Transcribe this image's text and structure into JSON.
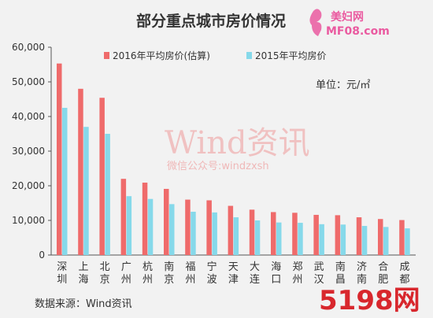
{
  "chart_data": {
    "type": "bar",
    "title": "部分重点城市房价情况",
    "unit_note": "单位：元/㎡",
    "ylim": [
      0,
      60000
    ],
    "yticks": [
      "0",
      "10,000",
      "20,000",
      "30,000",
      "40,000",
      "50,000",
      "60,000"
    ],
    "categories": [
      "深圳",
      "上海",
      "北京",
      "广州",
      "杭州",
      "南京",
      "福州",
      "宁波",
      "天津",
      "大连",
      "海口",
      "郑州",
      "武汉",
      "南昌",
      "济南",
      "合肥",
      "成都"
    ],
    "series": [
      {
        "name": "2016年平均房价(估算)",
        "color": "#ef6b6b",
        "values": [
          55300,
          48000,
          45400,
          22000,
          20900,
          19100,
          16000,
          15800,
          14200,
          13100,
          12400,
          12200,
          11600,
          11500,
          10900,
          10400,
          10100
        ]
      },
      {
        "name": "2015年平均房价",
        "color": "#86d9ea",
        "values": [
          42500,
          37000,
          35000,
          17000,
          16200,
          14700,
          12500,
          12300,
          10900,
          10000,
          9400,
          9300,
          8900,
          8800,
          8400,
          8100,
          7700
        ]
      }
    ],
    "legend_position": "top",
    "grid": false
  },
  "source": "数据来源：Wind资讯",
  "watermarks": {
    "main": "Wind资讯",
    "sub": "微信公众号:windzxsh"
  },
  "logos": {
    "top_line1": "美妇网",
    "top_line2": "MF08.com",
    "bottom": "5198网"
  }
}
